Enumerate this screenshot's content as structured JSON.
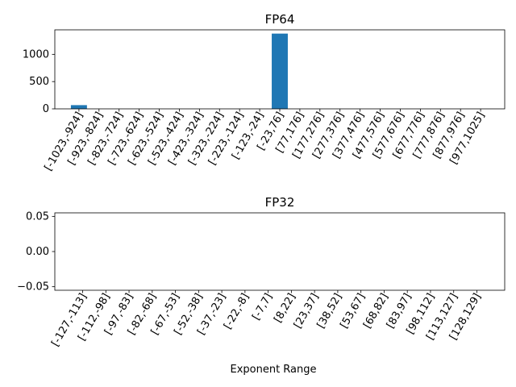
{
  "chart_data": [
    {
      "type": "bar",
      "title": "FP64",
      "xlabel": "",
      "ylabel": "",
      "color": "#1f77b4",
      "categories": [
        "[-1023,-924]",
        "[-923,-824]",
        "[-823,-724]",
        "[-723,-624]",
        "[-623,-524]",
        "[-523,-424]",
        "[-423,-324]",
        "[-323,-224]",
        "[-223,-124]",
        "[-123,-24]",
        "[-23,76]",
        "[77,176]",
        "[177,276]",
        "[277,376]",
        "[377,476]",
        "[477,576]",
        "[577,676]",
        "[677,776]",
        "[777,876]",
        "[877,976]",
        "[977,1025]"
      ],
      "values": [
        68,
        0,
        0,
        0,
        0,
        0,
        0,
        0,
        0,
        0,
        1380,
        0,
        0,
        0,
        0,
        0,
        0,
        0,
        0,
        0,
        0
      ],
      "ylim": [
        0,
        1449
      ],
      "yticks": [
        0,
        500,
        1000
      ],
      "ytick_labels": [
        "0",
        "500",
        "1000"
      ]
    },
    {
      "type": "bar",
      "title": "FP32",
      "xlabel": "Exponent Range",
      "ylabel": "",
      "color": "#1f77b4",
      "categories": [
        "[-127,-113]",
        "[-112,-98]",
        "[-97,-83]",
        "[-82,-68]",
        "[-67,-53]",
        "[-52,-38]",
        "[-37,-23]",
        "[-22,-8]",
        "[-7,7]",
        "[8,22]",
        "[23,37]",
        "[38,52]",
        "[53,67]",
        "[68,82]",
        "[83,97]",
        "[98,112]",
        "[113,127]",
        "[128,129]"
      ],
      "values": [
        0,
        0,
        0,
        0,
        0,
        0,
        0,
        0,
        0,
        0,
        0,
        0,
        0,
        0,
        0,
        0,
        0,
        0
      ],
      "ylim": [
        -0.055,
        0.055
      ],
      "yticks": [
        -0.05,
        0,
        0.05
      ],
      "ytick_labels": [
        "−0.05",
        "0.00",
        "0.05"
      ]
    }
  ]
}
